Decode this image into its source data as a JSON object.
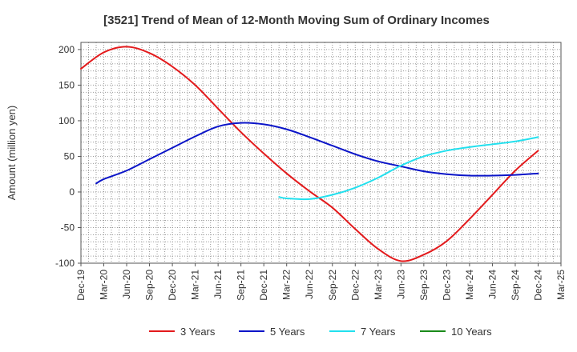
{
  "chart_data": {
    "type": "line",
    "title": "[3521]  Trend of Mean of 12-Month Moving Sum of Ordinary Incomes",
    "xlabel": "",
    "ylabel": "Amount (million yen)",
    "ylim": [
      -100,
      210
    ],
    "yticks": [
      200,
      150,
      100,
      50,
      0,
      -50,
      -100
    ],
    "ytick_labels": [
      "200",
      "150",
      "100",
      "50",
      "0",
      "-50",
      "-100"
    ],
    "x_ticks": [
      "Dec-19",
      "Mar-20",
      "Jun-20",
      "Sep-20",
      "Dec-20",
      "Mar-21",
      "Jun-21",
      "Sep-21",
      "Dec-21",
      "Mar-22",
      "Jun-22",
      "Sep-22",
      "Dec-22",
      "Mar-23",
      "Jun-23",
      "Sep-23",
      "Dec-23",
      "Mar-24",
      "Jun-24",
      "Sep-24",
      "Dec-24",
      "Mar-25"
    ],
    "grid": true,
    "legend_position": "bottom",
    "series": [
      {
        "name": "3 Years",
        "color": "#e31a1c",
        "points": [
          [
            0,
            173
          ],
          [
            1,
            196
          ],
          [
            2,
            204
          ],
          [
            3,
            195
          ],
          [
            4,
            176
          ],
          [
            5,
            150
          ],
          [
            6,
            117
          ],
          [
            7,
            84
          ],
          [
            8,
            54
          ],
          [
            9,
            26
          ],
          [
            10,
            1
          ],
          [
            11,
            -22
          ],
          [
            12,
            -52
          ],
          [
            13,
            -80
          ],
          [
            14,
            -97
          ],
          [
            15,
            -88
          ],
          [
            16,
            -69
          ],
          [
            17,
            -38
          ],
          [
            18,
            -4
          ],
          [
            19,
            30
          ],
          [
            20,
            58
          ]
        ]
      },
      {
        "name": "5 Years",
        "color": "#0a14c8",
        "points": [
          [
            0.67,
            12
          ],
          [
            1,
            18
          ],
          [
            2,
            30
          ],
          [
            3,
            46
          ],
          [
            4,
            62
          ],
          [
            5,
            78
          ],
          [
            6,
            92
          ],
          [
            7,
            97
          ],
          [
            8,
            95
          ],
          [
            9,
            88
          ],
          [
            10,
            77
          ],
          [
            11,
            65
          ],
          [
            12,
            53
          ],
          [
            13,
            43
          ],
          [
            14,
            36
          ],
          [
            15,
            29
          ],
          [
            16,
            25
          ],
          [
            17,
            23
          ],
          [
            18,
            23
          ],
          [
            19,
            24
          ],
          [
            20,
            26
          ]
        ]
      },
      {
        "name": "7 Years",
        "color": "#22e0ee",
        "points": [
          [
            8.67,
            -7
          ],
          [
            9,
            -9
          ],
          [
            10,
            -10
          ],
          [
            11,
            -4
          ],
          [
            12,
            6
          ],
          [
            13,
            20
          ],
          [
            14,
            37
          ],
          [
            15,
            50
          ],
          [
            16,
            58
          ],
          [
            17,
            63
          ],
          [
            18,
            67
          ],
          [
            19,
            71
          ],
          [
            20,
            77
          ]
        ]
      },
      {
        "name": "10 Years",
        "color": "#1a8a1a",
        "points": []
      }
    ]
  }
}
